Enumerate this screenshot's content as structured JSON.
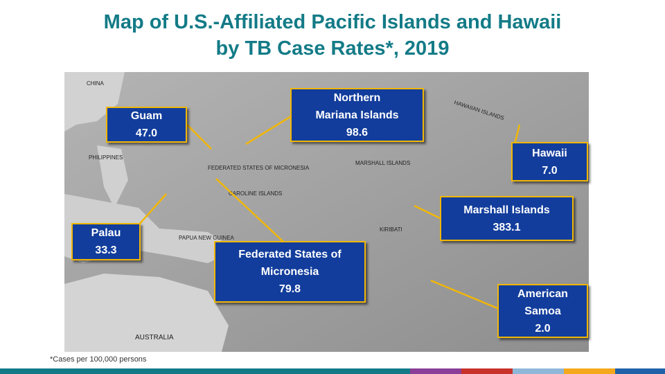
{
  "header": {
    "title_line1": "Map of U.S.-Affiliated Pacific Islands and Hawaii",
    "title_line2": "by TB Case Rates*, 2019"
  },
  "map_labels": [
    "PHILIPPINES",
    "AUSTRALIA",
    "PAPUA NEW GUINEA",
    "FEDERATED STATES OF MICRONESIA",
    "CAROLINE ISLANDS",
    "MARSHALL ISLANDS",
    "KIRIBATI",
    "HAWAIIAN ISLANDS",
    "CHINA"
  ],
  "callouts": [
    {
      "name": "Guam",
      "rate": "47.0"
    },
    {
      "name": "Northern Mariana Islands",
      "rate": "98.6"
    },
    {
      "name": "Hawaii",
      "rate": "7.0"
    },
    {
      "name": "Marshall Islands",
      "rate": "383.1"
    },
    {
      "name": "Palau",
      "rate": "33.3"
    },
    {
      "name": "Federated States of Micronesia",
      "rate": "79.8"
    },
    {
      "name": "American Samoa",
      "rate": "2.0"
    }
  ],
  "footnote": "*Cases per 100,000 persons"
}
